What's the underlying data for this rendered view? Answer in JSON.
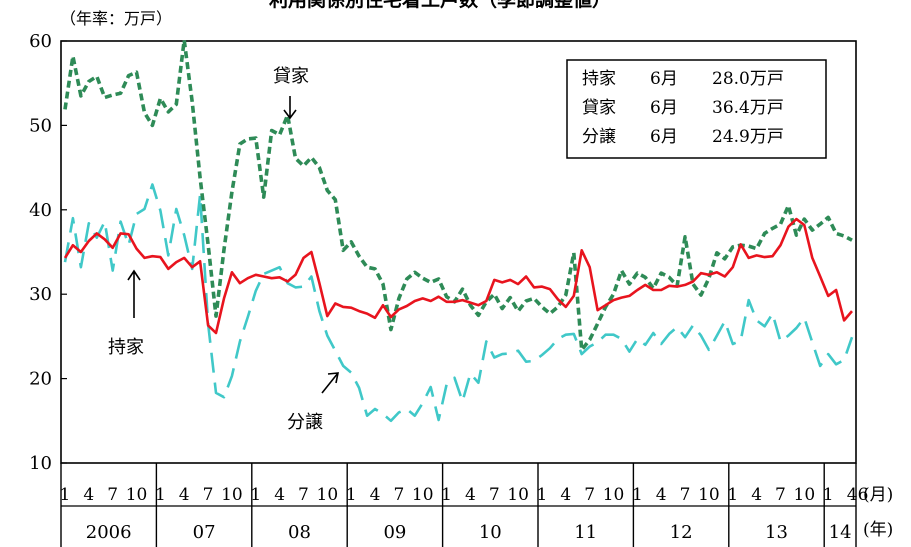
{
  "chart_data": {
    "type": "line",
    "title": "利用関係別住宅着工戸数（季節調整値）",
    "unit_label": "（年率：万戸）",
    "ylim": [
      10,
      60
    ],
    "yticks": [
      10,
      20,
      30,
      40,
      50,
      60
    ],
    "month_axis_label": "(月)",
    "year_axis_label": "(年)",
    "years": [
      "2006",
      "07",
      "08",
      "09",
      "10",
      "11",
      "12",
      "13",
      "14"
    ],
    "month_tick_groups": [
      [
        "1",
        "4",
        "7",
        "10"
      ],
      [
        "1",
        "4",
        "7",
        "10"
      ],
      [
        "1",
        "4",
        "7",
        "10"
      ],
      [
        "1",
        "4",
        "7",
        "10"
      ],
      [
        "1",
        "4",
        "7",
        "10"
      ],
      [
        "1",
        "4",
        "7",
        "10"
      ],
      [
        "1",
        "4",
        "7",
        "10"
      ],
      [
        "1",
        "4",
        "7",
        "10"
      ],
      [
        "1",
        "46"
      ]
    ],
    "info_box": [
      {
        "name": "持家",
        "month": "6月",
        "value": "28.0万戸"
      },
      {
        "name": "貸家",
        "month": "6月",
        "value": "36.4万戸"
      },
      {
        "name": "分譲",
        "month": "6月",
        "value": "24.9万戸"
      }
    ],
    "annotations": {
      "rental": "貸家",
      "owner": "持家",
      "condo": "分譲"
    },
    "colors": {
      "owner": "#e8141e",
      "rental": "#2e8b57",
      "condo": "#40c8c8"
    },
    "series": [
      {
        "name": "持家",
        "style": "solid",
        "values": [
          34.3,
          35.8,
          35.0,
          36.3,
          37.2,
          36.5,
          35.5,
          37.2,
          37.1,
          35.4,
          34.3,
          34.5,
          34.4,
          33.0,
          33.8,
          34.3,
          33.2,
          33.9,
          26.3,
          25.4,
          29.5,
          32.6,
          31.3,
          31.9,
          32.3,
          32.1,
          31.9,
          32.0,
          31.5,
          32.3,
          34.3,
          35.0,
          31.3,
          27.4,
          28.9,
          28.5,
          28.4,
          28.0,
          27.7,
          27.2,
          28.7,
          27.3,
          28.2,
          28.6,
          29.2,
          29.5,
          29.2,
          29.7,
          29.1,
          29.1,
          29.3,
          29.0,
          28.7,
          29.2,
          31.7,
          31.4,
          31.7,
          31.2,
          32.1,
          30.8,
          30.9,
          30.6,
          29.4,
          28.5,
          29.8,
          35.2,
          33.2,
          28.1,
          28.7,
          29.3,
          29.6,
          29.8,
          30.5,
          31.1,
          30.5,
          30.5,
          31.0,
          30.9,
          31.1,
          31.5,
          32.5,
          32.3,
          32.6,
          32.1,
          33.2,
          35.9,
          34.3,
          34.6,
          34.4,
          34.5,
          35.8,
          38.0,
          38.9,
          38.2,
          34.3,
          32.1,
          29.8,
          30.5,
          26.9,
          28.0
        ]
      },
      {
        "name": "貸家",
        "style": "dashed",
        "values": [
          51.9,
          58.2,
          53.5,
          55.2,
          55.8,
          53.3,
          53.6,
          53.8,
          55.9,
          56.3,
          51.5,
          50.0,
          53.2,
          51.6,
          52.5,
          60.1,
          52.8,
          43.8,
          35.9,
          27.4,
          35.3,
          42.1,
          47.8,
          48.4,
          48.5,
          41.5,
          49.4,
          48.9,
          51.2,
          46.1,
          45.2,
          46.2,
          45.0,
          42.3,
          41.2,
          35.2,
          36.2,
          34.5,
          33.2,
          33.0,
          31.2,
          25.8,
          29.5,
          31.8,
          32.6,
          31.9,
          31.4,
          31.8,
          29.7,
          29.1,
          30.6,
          28.7,
          27.5,
          29.1,
          30.0,
          28.3,
          29.6,
          28.0,
          29.2,
          29.5,
          28.5,
          27.7,
          28.5,
          29.9,
          34.9,
          23.4,
          24.6,
          26.5,
          28.5,
          30.0,
          32.8,
          31.2,
          32.5,
          32.0,
          30.7,
          32.5,
          32.0,
          31.0,
          36.8,
          31.2,
          29.9,
          31.9,
          34.9,
          34.2,
          35.6,
          35.8,
          35.7,
          35.4,
          37.2,
          37.8,
          38.3,
          40.5,
          37.0,
          38.9,
          37.6,
          38.3,
          39.1,
          37.2,
          36.9,
          36.4
        ]
      },
      {
        "name": "分譲",
        "style": "dashed",
        "values": [
          33.8,
          39.0,
          33.2,
          38.4,
          36.7,
          38.6,
          32.8,
          38.6,
          35.8,
          39.5,
          40.1,
          43.0,
          39.9,
          34.6,
          40.1,
          37.0,
          33.0,
          41.8,
          26.5,
          18.3,
          17.8,
          20.3,
          24.4,
          27.3,
          30.4,
          32.4,
          32.8,
          33.2,
          31.3,
          30.8,
          30.9,
          32.1,
          28.0,
          25.1,
          23.3,
          21.5,
          20.7,
          18.9,
          15.6,
          16.4,
          15.8,
          15.0,
          16.0,
          16.4,
          15.6,
          17.1,
          19.0,
          15.1,
          19.3,
          20.1,
          17.3,
          20.6,
          19.5,
          24.4,
          22.5,
          22.9,
          23.0,
          23.3,
          22.0,
          22.1,
          22.8,
          23.6,
          24.7,
          25.2,
          25.3,
          22.9,
          23.8,
          24.3,
          25.2,
          25.2,
          24.7,
          23.2,
          24.7,
          24.0,
          25.4,
          24.1,
          25.3,
          26.1,
          24.9,
          26.3,
          25.1,
          23.4,
          25.1,
          26.8,
          24.1,
          24.5,
          29.3,
          26.9,
          26.2,
          27.7,
          24.4,
          25.1,
          26.0,
          27.2,
          24.3,
          21.5,
          22.9,
          21.7,
          22.2,
          24.9
        ]
      }
    ]
  }
}
